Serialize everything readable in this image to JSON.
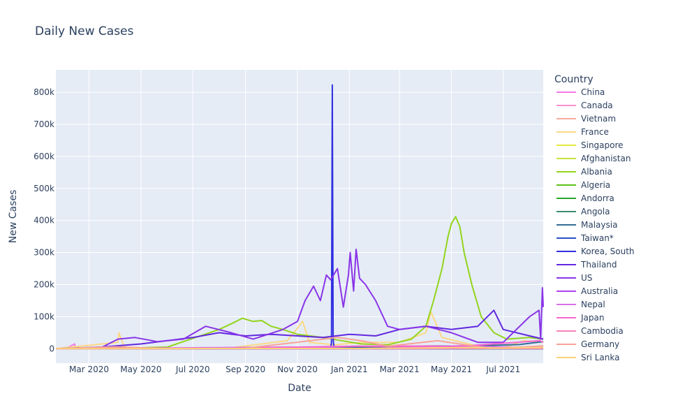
{
  "chart_data": {
    "type": "line",
    "title": "Daily New Cases",
    "xlabel": "Date",
    "ylabel": "New Cases",
    "legend_title": "Country",
    "legend_placement": "right",
    "grid": true,
    "xlim": [
      "2020-01-22",
      "2021-08-17"
    ],
    "ylim": [
      -45000,
      870000
    ],
    "x_ticks": [
      {
        "date": "2020-03-01",
        "label": "Mar 2020"
      },
      {
        "date": "2020-05-01",
        "label": "May 2020"
      },
      {
        "date": "2020-07-01",
        "label": "Jul 2020"
      },
      {
        "date": "2020-09-01",
        "label": "Sep 2020"
      },
      {
        "date": "2020-11-01",
        "label": "Nov 2020"
      },
      {
        "date": "2021-01-01",
        "label": "Jan 2021"
      },
      {
        "date": "2021-03-01",
        "label": "Mar 2021"
      },
      {
        "date": "2021-05-01",
        "label": "May 2021"
      },
      {
        "date": "2021-07-01",
        "label": "Jul 2021"
      }
    ],
    "y_ticks": [
      {
        "value": 0,
        "label": "0"
      },
      {
        "value": 100000,
        "label": "100k"
      },
      {
        "value": 200000,
        "label": "200k"
      },
      {
        "value": 300000,
        "label": "300k"
      },
      {
        "value": 400000,
        "label": "400k"
      },
      {
        "value": 500000,
        "label": "500k"
      },
      {
        "value": 600000,
        "label": "600k"
      },
      {
        "value": 700000,
        "label": "700k"
      },
      {
        "value": 800000,
        "label": "800k"
      }
    ],
    "series": [
      {
        "name": "China",
        "color": "#f47ae8",
        "points": [
          [
            "2020-01-22",
            0
          ],
          [
            "2020-02-05",
            3500
          ],
          [
            "2020-02-13",
            15000
          ],
          [
            "2020-02-14",
            4000
          ],
          [
            "2020-03-01",
            500
          ],
          [
            "2020-06-01",
            50
          ],
          [
            "2021-08-17",
            100
          ]
        ]
      },
      {
        "name": "Canada",
        "color": "#f78fd0",
        "points": [
          [
            "2020-01-22",
            0
          ],
          [
            "2020-04-15",
            1700
          ],
          [
            "2020-07-01",
            300
          ],
          [
            "2020-10-01",
            1500
          ],
          [
            "2021-01-08",
            8000
          ],
          [
            "2021-04-15",
            9000
          ],
          [
            "2021-07-01",
            500
          ],
          [
            "2021-08-17",
            2000
          ]
        ]
      },
      {
        "name": "Vietnam",
        "color": "#f8ab9d",
        "points": [
          [
            "2020-01-22",
            0
          ],
          [
            "2021-05-01",
            10
          ],
          [
            "2021-07-01",
            1000
          ],
          [
            "2021-08-17",
            9000
          ]
        ]
      },
      {
        "name": "France",
        "color": "#fbd886",
        "points": [
          [
            "2020-01-22",
            0
          ],
          [
            "2020-04-04",
            20000
          ],
          [
            "2020-04-05",
            50000
          ],
          [
            "2020-04-12",
            2000
          ],
          [
            "2020-06-01",
            500
          ],
          [
            "2020-08-15",
            3000
          ],
          [
            "2020-10-20",
            25000
          ],
          [
            "2020-10-31",
            60000
          ],
          [
            "2020-11-07",
            86000
          ],
          [
            "2020-11-15",
            20000
          ],
          [
            "2020-12-15",
            12000
          ],
          [
            "2021-01-15",
            20000
          ],
          [
            "2021-03-01",
            20000
          ],
          [
            "2021-04-01",
            50000
          ],
          [
            "2021-04-07",
            115000
          ],
          [
            "2021-04-20",
            35000
          ],
          [
            "2021-06-01",
            8000
          ],
          [
            "2021-07-01",
            3000
          ],
          [
            "2021-07-25",
            25000
          ],
          [
            "2021-08-17",
            20000
          ]
        ]
      },
      {
        "name": "Singapore",
        "color": "#e8e83f",
        "points": [
          [
            "2020-01-22",
            0
          ],
          [
            "2020-04-20",
            1400
          ],
          [
            "2020-06-01",
            500
          ],
          [
            "2020-09-01",
            20
          ],
          [
            "2021-06-01",
            30
          ],
          [
            "2021-08-17",
            150
          ]
        ]
      },
      {
        "name": "Afghanistan",
        "color": "#c7e33a",
        "points": [
          [
            "2020-01-22",
            0
          ],
          [
            "2020-06-15",
            800
          ],
          [
            "2020-09-01",
            100
          ],
          [
            "2020-12-15",
            500
          ],
          [
            "2021-03-01",
            100
          ],
          [
            "2021-06-15",
            2300
          ],
          [
            "2021-08-17",
            200
          ]
        ]
      },
      {
        "name": "Albania",
        "color": "#93d41c",
        "points": [
          [
            "2020-01-22",
            0
          ],
          [
            "2020-04-01",
            1000
          ],
          [
            "2020-06-01",
            5000
          ],
          [
            "2020-08-01",
            60000
          ],
          [
            "2020-08-21",
            85000
          ],
          [
            "2020-08-28",
            95000
          ],
          [
            "2020-09-10",
            85000
          ],
          [
            "2020-09-20",
            88000
          ],
          [
            "2020-10-01",
            70000
          ],
          [
            "2020-10-15",
            60000
          ],
          [
            "2020-11-01",
            45000
          ],
          [
            "2020-12-01",
            35000
          ],
          [
            "2021-01-15",
            15000
          ],
          [
            "2021-02-15",
            12000
          ],
          [
            "2021-03-15",
            30000
          ],
          [
            "2021-04-01",
            70000
          ],
          [
            "2021-04-10",
            150000
          ],
          [
            "2021-04-20",
            250000
          ],
          [
            "2021-04-27",
            350000
          ],
          [
            "2021-05-01",
            390000
          ],
          [
            "2021-05-06",
            412000
          ],
          [
            "2021-05-11",
            380000
          ],
          [
            "2021-05-16",
            300000
          ],
          [
            "2021-05-25",
            200000
          ],
          [
            "2021-06-05",
            100000
          ],
          [
            "2021-06-20",
            50000
          ],
          [
            "2021-07-05",
            30000
          ],
          [
            "2021-08-01",
            35000
          ],
          [
            "2021-08-17",
            30000
          ]
        ]
      },
      {
        "name": "Algeria",
        "color": "#5cc21b",
        "points": [
          [
            "2020-01-22",
            0
          ],
          [
            "2020-07-20",
            700
          ],
          [
            "2020-11-20",
            1100
          ],
          [
            "2021-03-01",
            200
          ],
          [
            "2021-07-25",
            1900
          ],
          [
            "2021-08-17",
            900
          ]
        ]
      },
      {
        "name": "Andorra",
        "color": "#2da62d",
        "points": [
          [
            "2020-01-22",
            0
          ],
          [
            "2020-11-01",
            200
          ],
          [
            "2021-03-01",
            50
          ],
          [
            "2021-08-17",
            30
          ]
        ]
      },
      {
        "name": "Angola",
        "color": "#3a8c6e",
        "points": [
          [
            "2020-01-22",
            0
          ],
          [
            "2020-10-15",
            300
          ],
          [
            "2021-05-01",
            400
          ],
          [
            "2021-08-17",
            200
          ]
        ]
      },
      {
        "name": "Malaysia",
        "color": "#336d96",
        "points": [
          [
            "2020-01-22",
            0
          ],
          [
            "2020-10-01",
            200
          ],
          [
            "2021-01-30",
            5700
          ],
          [
            "2021-05-29",
            9000
          ],
          [
            "2021-07-20",
            13000
          ],
          [
            "2021-08-17",
            22000
          ]
        ]
      },
      {
        "name": "Taiwan*",
        "color": "#2c4fc7",
        "points": [
          [
            "2020-01-22",
            0
          ],
          [
            "2021-05-15",
            200
          ],
          [
            "2021-05-25",
            700
          ],
          [
            "2021-07-01",
            50
          ],
          [
            "2021-08-17",
            10
          ]
        ]
      },
      {
        "name": "Korea, South",
        "color": "#3030e0",
        "points": [
          [
            "2020-01-22",
            0
          ],
          [
            "2020-03-01",
            800
          ],
          [
            "2020-06-01",
            50
          ],
          [
            "2020-12-10",
            800
          ],
          [
            "2020-12-11",
            20000
          ],
          [
            "2020-12-12",
            823000
          ],
          [
            "2020-12-13",
            30000
          ],
          [
            "2020-12-14",
            1000
          ],
          [
            "2021-01-01",
            1000
          ],
          [
            "2021-07-20",
            1800
          ],
          [
            "2021-08-17",
            1900
          ]
        ]
      },
      {
        "name": "Thailand",
        "color": "#6228e0",
        "points": [
          [
            "2020-01-22",
            0
          ],
          [
            "2020-03-15",
            5000
          ],
          [
            "2020-05-01",
            15000
          ],
          [
            "2020-07-01",
            35000
          ],
          [
            "2020-08-01",
            50000
          ],
          [
            "2020-09-01",
            40000
          ],
          [
            "2020-10-01",
            45000
          ],
          [
            "2020-11-01",
            40000
          ],
          [
            "2020-12-01",
            35000
          ],
          [
            "2021-01-01",
            45000
          ],
          [
            "2021-02-01",
            40000
          ],
          [
            "2021-03-01",
            60000
          ],
          [
            "2021-04-01",
            70000
          ],
          [
            "2021-05-01",
            60000
          ],
          [
            "2021-06-01",
            70000
          ],
          [
            "2021-06-20",
            120000
          ],
          [
            "2021-07-01",
            60000
          ],
          [
            "2021-08-01",
            40000
          ],
          [
            "2021-08-17",
            30000
          ]
        ]
      },
      {
        "name": "US",
        "color": "#8a34e8",
        "points": [
          [
            "2020-01-22",
            0
          ],
          [
            "2020-03-15",
            3000
          ],
          [
            "2020-04-04",
            30000
          ],
          [
            "2020-04-24",
            35000
          ],
          [
            "2020-05-20",
            22000
          ],
          [
            "2020-06-20",
            30000
          ],
          [
            "2020-07-16",
            70000
          ],
          [
            "2020-08-15",
            50000
          ],
          [
            "2020-09-10",
            30000
          ],
          [
            "2020-10-15",
            60000
          ],
          [
            "2020-11-01",
            85000
          ],
          [
            "2020-11-10",
            150000
          ],
          [
            "2020-11-20",
            195000
          ],
          [
            "2020-11-28",
            150000
          ],
          [
            "2020-12-05",
            230000
          ],
          [
            "2020-12-10",
            215000
          ],
          [
            "2020-12-18",
            250000
          ],
          [
            "2020-12-25",
            130000
          ],
          [
            "2020-12-31",
            230000
          ],
          [
            "2021-01-02",
            300000
          ],
          [
            "2021-01-06",
            180000
          ],
          [
            "2021-01-09",
            310000
          ],
          [
            "2021-01-13",
            220000
          ],
          [
            "2021-01-20",
            200000
          ],
          [
            "2021-02-01",
            150000
          ],
          [
            "2021-02-15",
            70000
          ],
          [
            "2021-03-01",
            60000
          ],
          [
            "2021-04-01",
            70000
          ],
          [
            "2021-05-01",
            50000
          ],
          [
            "2021-06-01",
            20000
          ],
          [
            "2021-07-01",
            20000
          ],
          [
            "2021-08-01",
            100000
          ],
          [
            "2021-08-12",
            120000
          ],
          [
            "2021-08-14",
            30000
          ],
          [
            "2021-08-16",
            190000
          ],
          [
            "2021-08-17",
            130000
          ]
        ]
      },
      {
        "name": "Australia",
        "color": "#b03ff0",
        "points": [
          [
            "2020-01-22",
            0
          ],
          [
            "2020-03-28",
            450
          ],
          [
            "2020-05-01",
            30
          ],
          [
            "2020-08-05",
            700
          ],
          [
            "2020-10-01",
            20
          ],
          [
            "2021-08-17",
            700
          ]
        ]
      },
      {
        "name": "Nepal",
        "color": "#d871e8",
        "points": [
          [
            "2020-01-22",
            0
          ],
          [
            "2020-10-20",
            5000
          ],
          [
            "2021-01-15",
            300
          ],
          [
            "2021-05-10",
            9000
          ],
          [
            "2021-08-17",
            2000
          ]
        ]
      },
      {
        "name": "Japan",
        "color": "#f567d0",
        "points": [
          [
            "2020-01-22",
            0
          ],
          [
            "2020-04-10",
            700
          ],
          [
            "2020-08-07",
            1600
          ],
          [
            "2021-01-08",
            7800
          ],
          [
            "2021-05-08",
            7000
          ],
          [
            "2021-08-13",
            25000
          ],
          [
            "2021-08-17",
            20000
          ]
        ]
      },
      {
        "name": "Cambodia",
        "color": "#f782b6",
        "points": [
          [
            "2020-01-22",
            0
          ],
          [
            "2021-03-01",
            50
          ],
          [
            "2021-05-01",
            900
          ],
          [
            "2021-08-17",
            600
          ]
        ]
      },
      {
        "name": "Germany",
        "color": "#f8a297",
        "points": [
          [
            "2020-01-22",
            0
          ],
          [
            "2020-04-01",
            6000
          ],
          [
            "2020-06-01",
            300
          ],
          [
            "2020-09-01",
            1500
          ],
          [
            "2020-10-31",
            20000
          ],
          [
            "2020-12-18",
            35000
          ],
          [
            "2021-01-15",
            25000
          ],
          [
            "2021-02-15",
            8000
          ],
          [
            "2021-04-15",
            25000
          ],
          [
            "2021-06-15",
            1000
          ],
          [
            "2021-08-17",
            8000
          ]
        ]
      },
      {
        "name": "Sri Lanka",
        "color": "#fbd178",
        "points": [
          [
            "2020-01-22",
            0
          ],
          [
            "2020-10-20",
            800
          ],
          [
            "2021-01-15",
            800
          ],
          [
            "2021-05-25",
            3600
          ],
          [
            "2021-07-01",
            2000
          ],
          [
            "2021-08-17",
            3700
          ]
        ]
      }
    ]
  }
}
